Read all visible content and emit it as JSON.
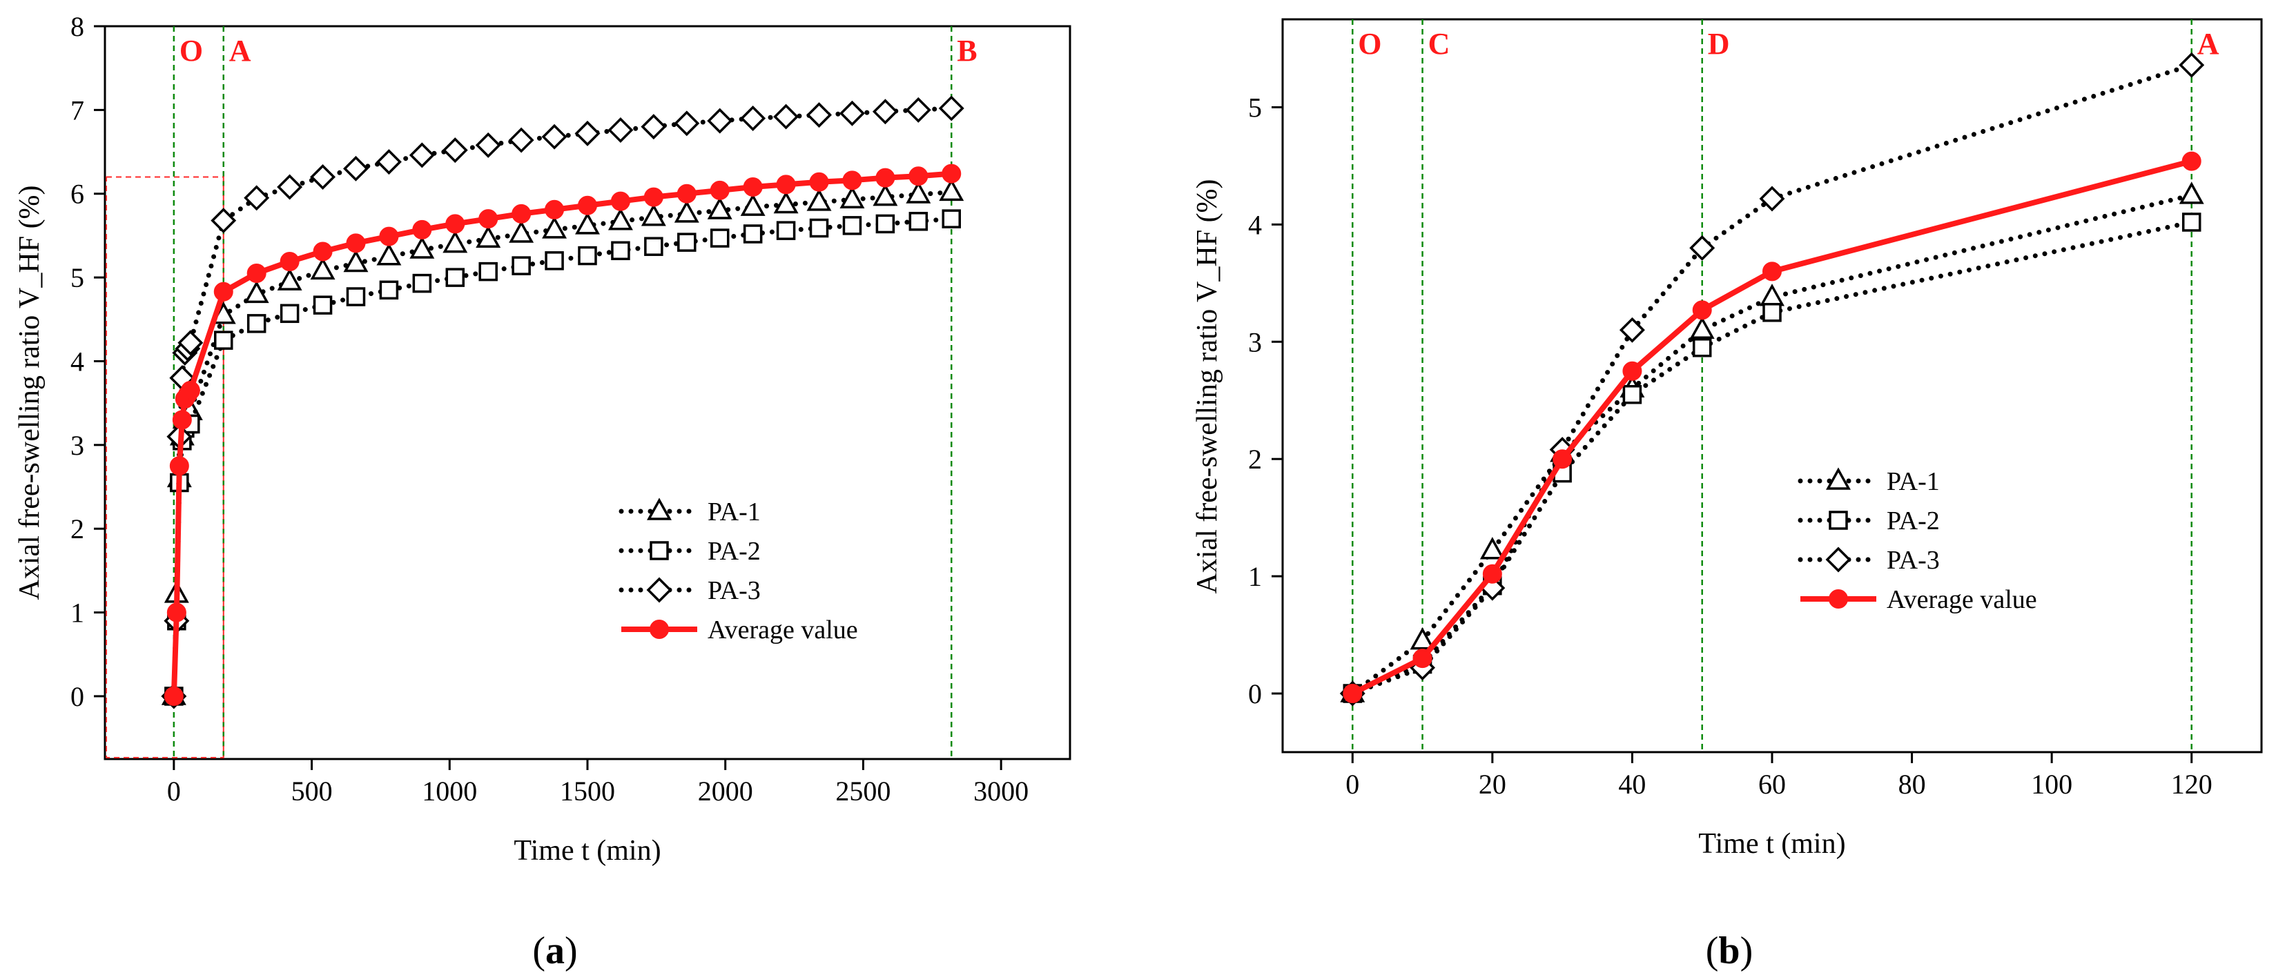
{
  "chart_data": [
    {
      "panel": "(a)",
      "panel_paren_open": "(",
      "panel_letter": "a",
      "panel_paren_close": ")",
      "type": "line",
      "xlabel": "Time t (min)",
      "ylabel": "Axial free-swelling ratio V_HF (%)",
      "xlim": [
        -250,
        3250
      ],
      "ylim": [
        -0.75,
        8
      ],
      "xticks": [
        0,
        500,
        1000,
        1500,
        2000,
        2500,
        3000
      ],
      "yticks": [
        0,
        1,
        2,
        3,
        4,
        5,
        6,
        7,
        8
      ],
      "vertical_markers": [
        {
          "label": "O",
          "x": 0
        },
        {
          "label": "A",
          "x": 180
        },
        {
          "label": "B",
          "x": 2820
        }
      ],
      "zoom_region": {
        "x": [
          -250,
          180
        ],
        "y": [
          -0.75,
          6.2
        ]
      },
      "legend_position": "center-right",
      "series": [
        {
          "name": "PA-1",
          "marker": "triangle",
          "style": "dotted",
          "color": "#000000",
          "x": [
            0,
            10,
            20,
            30,
            40,
            50,
            60,
            180,
            300,
            420,
            540,
            660,
            780,
            900,
            1020,
            1140,
            1260,
            1380,
            1500,
            1620,
            1740,
            1860,
            1980,
            2100,
            2220,
            2340,
            2460,
            2580,
            2700,
            2820
          ],
          "y": [
            0,
            1.22,
            2.6,
            3.1,
            3.3,
            3.35,
            3.4,
            4.55,
            4.8,
            4.95,
            5.08,
            5.17,
            5.25,
            5.33,
            5.4,
            5.46,
            5.52,
            5.57,
            5.62,
            5.67,
            5.72,
            5.76,
            5.8,
            5.84,
            5.87,
            5.9,
            5.93,
            5.96,
            5.99,
            6.02
          ]
        },
        {
          "name": "PA-2",
          "marker": "square",
          "style": "dotted",
          "color": "#000000",
          "x": [
            0,
            10,
            20,
            30,
            40,
            50,
            60,
            180,
            300,
            420,
            540,
            660,
            780,
            900,
            1020,
            1140,
            1260,
            1380,
            1500,
            1620,
            1740,
            1860,
            1980,
            2100,
            2220,
            2340,
            2460,
            2580,
            2700,
            2820
          ],
          "y": [
            0,
            0.9,
            2.55,
            3.05,
            3.2,
            3.25,
            3.25,
            4.25,
            4.45,
            4.57,
            4.67,
            4.77,
            4.85,
            4.93,
            5.0,
            5.07,
            5.14,
            5.2,
            5.26,
            5.32,
            5.37,
            5.42,
            5.47,
            5.52,
            5.56,
            5.59,
            5.62,
            5.64,
            5.67,
            5.7
          ]
        },
        {
          "name": "PA-3",
          "marker": "diamond",
          "style": "dotted",
          "color": "#000000",
          "x": [
            0,
            10,
            20,
            30,
            40,
            50,
            60,
            180,
            300,
            420,
            540,
            660,
            780,
            900,
            1020,
            1140,
            1260,
            1380,
            1500,
            1620,
            1740,
            1860,
            1980,
            2100,
            2220,
            2340,
            2460,
            2580,
            2700,
            2820
          ],
          "y": [
            0,
            0.9,
            3.1,
            3.8,
            4.1,
            4.15,
            4.22,
            5.68,
            5.95,
            6.08,
            6.2,
            6.3,
            6.38,
            6.46,
            6.52,
            6.58,
            6.64,
            6.68,
            6.72,
            6.76,
            6.8,
            6.84,
            6.87,
            6.9,
            6.92,
            6.94,
            6.96,
            6.98,
            7.0,
            7.02
          ]
        },
        {
          "name": "Average value",
          "marker": "circle",
          "style": "solid",
          "color": "#ff1a1a",
          "x": [
            0,
            10,
            20,
            30,
            40,
            50,
            60,
            180,
            300,
            420,
            540,
            660,
            780,
            900,
            1020,
            1140,
            1260,
            1380,
            1500,
            1620,
            1740,
            1860,
            1980,
            2100,
            2220,
            2340,
            2460,
            2580,
            2700,
            2820
          ],
          "y": [
            0,
            1.0,
            2.75,
            3.3,
            3.55,
            3.6,
            3.65,
            4.83,
            5.05,
            5.19,
            5.31,
            5.41,
            5.49,
            5.57,
            5.64,
            5.7,
            5.76,
            5.81,
            5.86,
            5.91,
            5.96,
            6.0,
            6.04,
            6.08,
            6.11,
            6.14,
            6.16,
            6.19,
            6.21,
            6.24
          ]
        }
      ]
    },
    {
      "panel": "(b)",
      "panel_paren_open": "(",
      "panel_letter": "b",
      "panel_paren_close": ")",
      "type": "line",
      "xlabel": "Time t (min)",
      "ylabel": "Axial free-swelling ratio V_HF (%)",
      "xlim": [
        -10,
        130
      ],
      "ylim": [
        -0.5,
        5.75
      ],
      "xticks": [
        0,
        20,
        40,
        60,
        80,
        100,
        120
      ],
      "yticks": [
        0,
        1,
        2,
        3,
        4,
        5
      ],
      "vertical_markers": [
        {
          "label": "O",
          "x": 0
        },
        {
          "label": "C",
          "x": 10
        },
        {
          "label": "D",
          "x": 50
        },
        {
          "label": "A",
          "x": 120
        }
      ],
      "legend_position": "center-right",
      "series": [
        {
          "name": "PA-1",
          "marker": "triangle",
          "style": "dotted",
          "color": "#000000",
          "x": [
            0,
            10,
            20,
            30,
            40,
            50,
            60,
            120
          ],
          "y": [
            0,
            0.45,
            1.22,
            2.05,
            2.6,
            3.1,
            3.38,
            4.25
          ]
        },
        {
          "name": "PA-2",
          "marker": "square",
          "style": "dotted",
          "color": "#000000",
          "x": [
            0,
            10,
            20,
            30,
            40,
            50,
            60,
            120
          ],
          "y": [
            0,
            0.25,
            0.92,
            1.88,
            2.55,
            2.95,
            3.25,
            4.02
          ]
        },
        {
          "name": "PA-3",
          "marker": "diamond",
          "style": "dotted",
          "color": "#000000",
          "x": [
            0,
            10,
            20,
            30,
            40,
            50,
            60,
            120
          ],
          "y": [
            0,
            0.22,
            0.9,
            2.08,
            3.1,
            3.8,
            4.22,
            5.36
          ]
        },
        {
          "name": "Average value",
          "marker": "circle",
          "style": "solid",
          "color": "#ff1a1a",
          "x": [
            0,
            10,
            20,
            30,
            40,
            50,
            60,
            120
          ],
          "y": [
            0,
            0.3,
            1.02,
            2.0,
            2.75,
            3.27,
            3.6,
            4.54
          ]
        }
      ]
    }
  ]
}
